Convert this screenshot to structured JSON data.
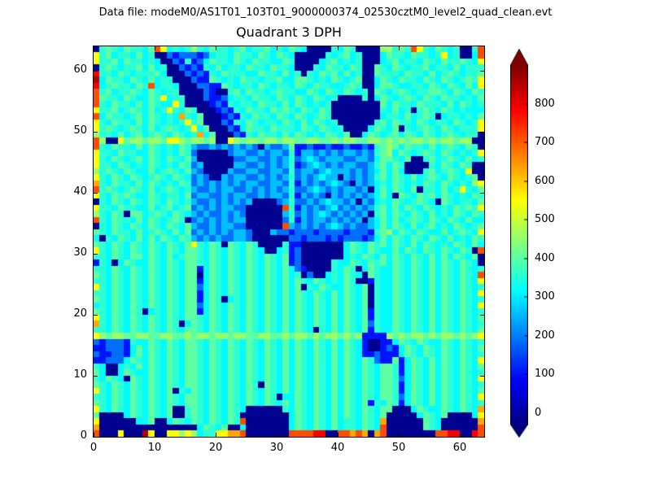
{
  "header": {
    "datafile": "Data file: modeM0/AS1T01_103T01_9000000374_02530cztM0_level2_quad_clean.evt"
  },
  "chart_data": {
    "type": "heatmap",
    "title": "Quadrant 3 DPH",
    "xlabel": "",
    "ylabel": "",
    "x_range": [
      0,
      64
    ],
    "y_range": [
      0,
      64
    ],
    "xticks": [
      0,
      10,
      20,
      30,
      40,
      50,
      60
    ],
    "yticks": [
      0,
      10,
      20,
      30,
      40,
      50,
      60
    ],
    "grid_on": false,
    "colormap": "jet",
    "scale_max": 900,
    "colorbar": {
      "ticks": [
        0,
        100,
        200,
        300,
        400,
        500,
        600,
        700,
        800
      ],
      "vmin": -30,
      "vmax": 900,
      "extend": "both",
      "stops": [
        "#00007F",
        "#0000FF",
        "#00FFFF",
        "#FFFF00",
        "#FF0000",
        "#7F0000"
      ]
    },
    "value_key": {
      "0": 15,
      "1": 130,
      "2": 210,
      "3": 280,
      "4": 335,
      "5": 375,
      "6": 420,
      "7": 470,
      "8": 560,
      "9": 640,
      "a": 720,
      "b": 790,
      "c": 860
    },
    "grid_rows_top_to_bottom": [
      "0565465546a845457546554564556454654000054650000775 65a8546545005a",
      "8564554645002122212455465546546540000054564500046554655458 45004a",
      "8556465545400215124655465465544650000456454500045645546546556548",
      "0565455646450021215464554655465540005465546500654654556455464555",
      "b554654555640002121546555446554645054656464500655546554645654556",
      "c465546546455000211654546554556446654546545600465465546546545658",
      "b45655465a45540002211654554654554654655445650046654455465465 4648",
      "a564556546545500002100564655456554465465465450654565455665465465",
      "a655465446584550002112455465546546546545000050465456546546554546",
      "a546554646544850000121545546554646545450000000064655465554646545",
      "8556456546458546500012154655465654654650000000054645056546545444",
      "a465545646545495460001215465546546545650000000045546456504554546",
      "8546554646545458560002154654554654646545000000564655465455465458",
      "8565456546456545846000214655465554654654500004654605456546545558",
      "7554645645654654594600021546554646545465460046545646546545654550",
      "a700867767768876776700876776776776677667677667767676776767767700",
      "a546554646545465322323232320322361121121121121567646554645654650",
      "8554655446545465200000233223233251332323233232567465456546545458",
      "8546545646546546300000022332232352343233322332466546005645654645",
      "8554654546545465230000033223232351234323233223564650000546546500",
      "7565465446456546320000322332233252332343332323464640005645654800",
      "8546546545654654232003233223232352323433032323564654645654654560",
      "9546554646545465232323232332233251323234320323454654546546545478",
      "a565456546456545322323322323232352234323233230464654605546458546",
      "8546565446545546233223233223233251323203232323464065465646545465",
      "0546546546546545322323232300002352232343323032454654565406545546",
      "85546554464564562323233220000 00a5132323423232356464654654546 5658",
      "7546506645654654323223232000000352323432323230564654654645465465",
      "a5465546465456502323232330000002513233232323034646456546546 54644",
      "05465465465465463223233220000 00a3232323432322346465464564546 5456",
      "6546554645654646232323233200032212221222212221567465465446456548",
      "4054654646465465323232233200000022122212122212464654654654645465",
      "6546546546546546854650654650000511000000046546564654646545465464",
      "85465465465465466546546546540045120000000465465446465465465 4650a",
      "5546546646546456654654654654654612000000045465464654654646465460",
      "1540465446546546654654654654654612000005446546564654654646546540",
      "5546546546546546614654654654654642100005465046544654654646546545",
      "65465465465465466046546546546546450200454654065446546546465 4654a",
      "5546546546546546614654654654654646546545465001544654654646546548",
      "8546546546546546624654654654654646054654465460544654654646546545",
      "5546546546546546614654654654654646546546465460544654654646546548",
      "6546546546546546614650454654654646546546465460544654654646546545",
      "4546546546546546624654654654654646546546465460544654654646546548",
      "6546546504546546614654654654654646546546465461544654654646546545",
      "8546546546546546654654654654654646546546465461544654654646546546",
      "9546546546546504654654654654654646546546465462544654654646546545",
      "5546546546546546654654654654654646540546465461544654654646546546",
      "8767766776677667677677677667766767767677676711117676776767767678",
      "2122215446546546654654654654654646546546465410011465465446546545",
      "1122214646546546654654654654654646546546465410012146546546546546",
      "2112214646546546654654654654654646546546465411211146546546546545",
      "1122246546546546654654654654654646546546465465211614654646546548",
      "5400454646546546654654654654654646546546465465466514654646546546",
      "6400465446546546654654654654654646546546465465466514654646546545",
      "5465406546546546654654654654654646546546465465466524654646546548",
      "6546546546546546654654654650654646546546465465466514654646546545",
      "8546546546546054654654654654654646546546465465466514654646546546",
      "5546546546546546654654654654650446546546465465466524654646546548",
      "6546546546546546654654654654654646546546465461546514654646546545",
      "8546546546546005654654654000000546546546465465466000465446546549",
      "6000046546546005654654650000000046546546465465460000046546000048",
      "800000044600465465465465a000000046546546455465490000006540000009",
      "9000000000000000046546004000000046546546455465 4a000000654000000a",
      "a0008000c800887874558899a0000000aaaabb00aa9a909a00000000aabb00ba"
    ]
  }
}
